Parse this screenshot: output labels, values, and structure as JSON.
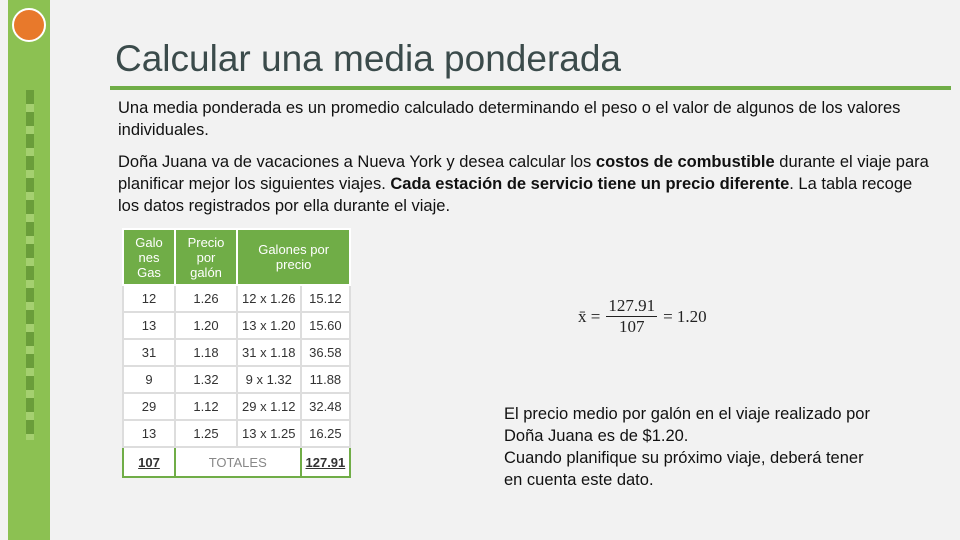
{
  "title": "Calcular una media ponderada",
  "intro": "Una media ponderada es un promedio calculado determinando el peso o el valor de algunos de los valores individuales.",
  "paragraph": [
    {
      "text": "Doña Juana va de vacaciones a Nueva York y desea calcular los ",
      "bold": false
    },
    {
      "text": "costos de combustible",
      "bold": true
    },
    {
      "text": " durante el viaje para planificar mejor los siguientes viajes. ",
      "bold": false
    },
    {
      "text": "Cada estación de servicio tiene un precio diferente",
      "bold": true
    },
    {
      "text": ". La tabla recoge los datos registrados por ella durante el viaje.",
      "bold": false
    }
  ],
  "table": {
    "header": [
      "Galo nes Gas",
      "Precio por galón",
      "Galones por precio"
    ],
    "rows": [
      [
        "12",
        "1.26",
        "12 x 1.26",
        "15.12"
      ],
      [
        "13",
        "1.20",
        "13 x 1.20",
        "15.60"
      ],
      [
        "31",
        "1.18",
        "31 x 1.18",
        "36.58"
      ],
      [
        "9",
        "1.32",
        "9 x 1.32",
        "11.88"
      ],
      [
        "29",
        "1.12",
        "29 x 1.12",
        "32.48"
      ],
      [
        "13",
        "1.25",
        "13 x 1.25",
        "16.25"
      ]
    ],
    "totals": [
      "107",
      "TOTALES",
      "127.91"
    ]
  },
  "formula": {
    "lhs": "x̄ =",
    "numerator": "127.91",
    "denominator": "107",
    "rhs": "= 1.20"
  },
  "conclusion": [
    "El precio medio por galón en el viaje realizado por Doña Juana es de $1.20.",
    "Cuando planifique su próximo viaje, deberá tener en cuenta este dato."
  ]
}
